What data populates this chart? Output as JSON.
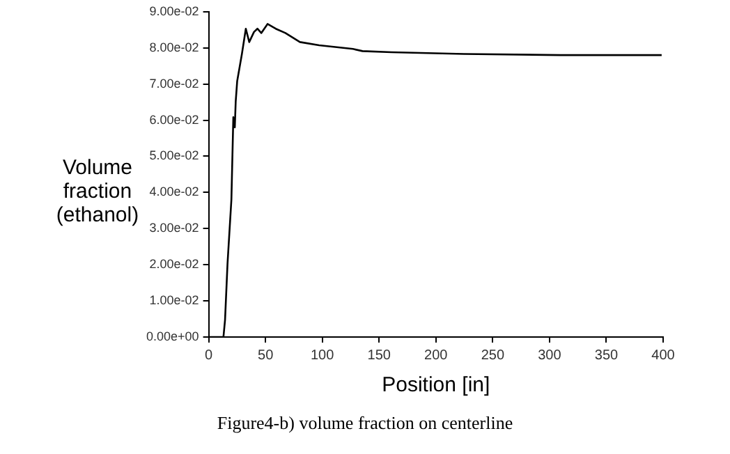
{
  "chart_data": {
    "type": "line",
    "xlabel": "Position [in]",
    "ylabel": "Volume fraction (ethanol)",
    "annotations": [
      "Figure4-b) volume fraction on centerline"
    ],
    "x": [
      0,
      13,
      14.4,
      16.6,
      20,
      21.7,
      23,
      23.8,
      25.1,
      29.3,
      32.7,
      35.7,
      39.9,
      42.9,
      46.3,
      51.8,
      59,
      67.5,
      80.3,
      97.2,
      127,
      135.4,
      161,
      224.6,
      309.6,
      398.7
    ],
    "series": [
      {
        "color": "#000000",
        "values": [
          0,
          0,
          0.0047,
          0.0204,
          0.038,
          0.0608,
          0.058,
          0.0652,
          0.0708,
          0.0784,
          0.0853,
          0.0816,
          0.0844,
          0.0853,
          0.0841,
          0.0866,
          0.0853,
          0.0841,
          0.0816,
          0.0807,
          0.0797,
          0.0791,
          0.0788,
          0.0783,
          0.078,
          0.078
        ]
      }
    ],
    "xlim": [
      0,
      400
    ],
    "xticks": [
      0,
      50,
      100,
      150,
      200,
      250,
      300,
      350,
      400
    ],
    "ylim": [
      0,
      0.09
    ],
    "yticks": [
      {
        "value": 0,
        "label": "0.00e+00"
      },
      {
        "value": 0.01,
        "label": "1.00e-02"
      },
      {
        "value": 0.02,
        "label": "2.00e-02"
      },
      {
        "value": 0.03,
        "label": "3.00e-02"
      },
      {
        "value": 0.04,
        "label": "4.00e-02"
      },
      {
        "value": 0.05,
        "label": "5.00e-02"
      },
      {
        "value": 0.06,
        "label": "6.00e-02"
      },
      {
        "value": 0.07,
        "label": "7.00e-02"
      },
      {
        "value": 0.08,
        "label": "8.00e-02"
      },
      {
        "value": 0.09,
        "label": "9.00e-02"
      }
    ],
    "grid": false,
    "legend": false,
    "marker": "none",
    "line_style": "solid"
  }
}
